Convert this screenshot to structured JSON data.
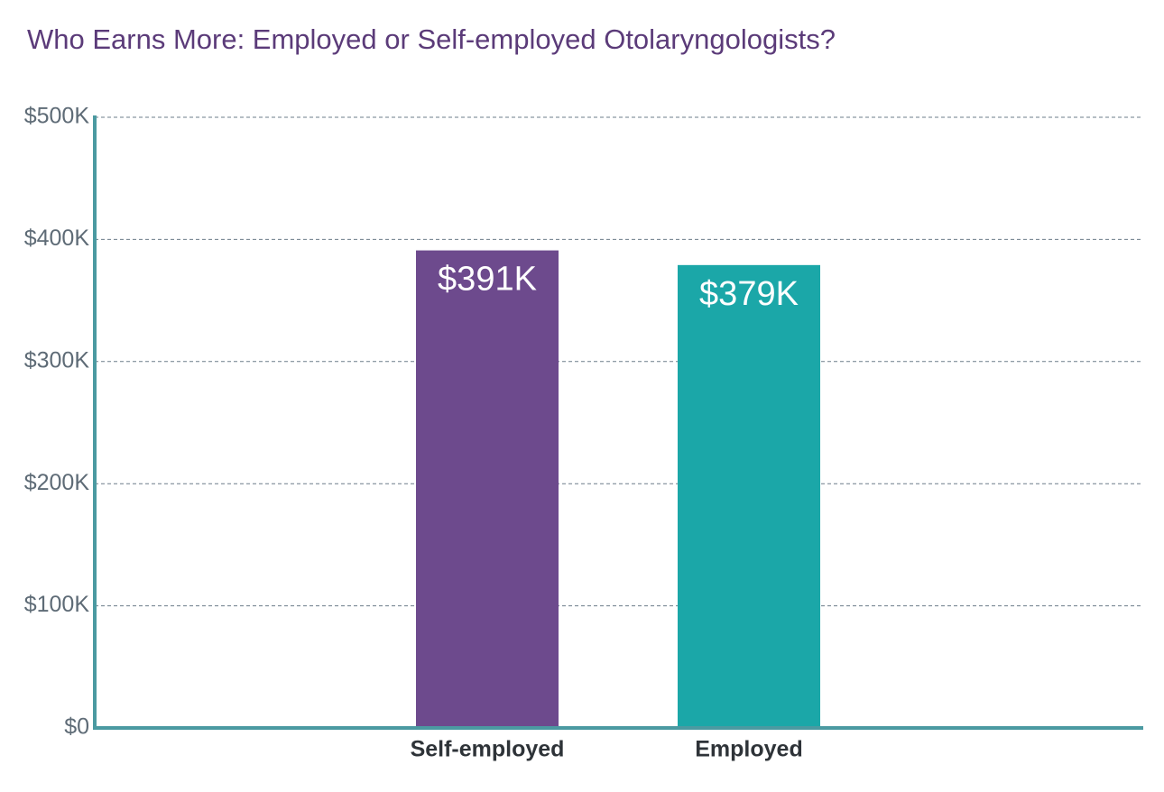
{
  "chart_data": {
    "type": "bar",
    "title": "Who Earns More: Employed or Self-employed Otolaryngologists?",
    "categories": [
      "Self-employed",
      "Employed"
    ],
    "values": [
      391000,
      379000
    ],
    "value_labels": [
      "$391K",
      "$379K"
    ],
    "colors": [
      "#6d4a8d",
      "#1ba7a8"
    ],
    "ylim": [
      0,
      500000
    ],
    "yticks": [
      {
        "value": 0,
        "label": "$0"
      },
      {
        "value": 100000,
        "label": "$100K"
      },
      {
        "value": 200000,
        "label": "$200K"
      },
      {
        "value": 300000,
        "label": "$300K"
      },
      {
        "value": 400000,
        "label": "$400K"
      },
      {
        "value": 500000,
        "label": "$500K"
      }
    ],
    "grid": true
  }
}
